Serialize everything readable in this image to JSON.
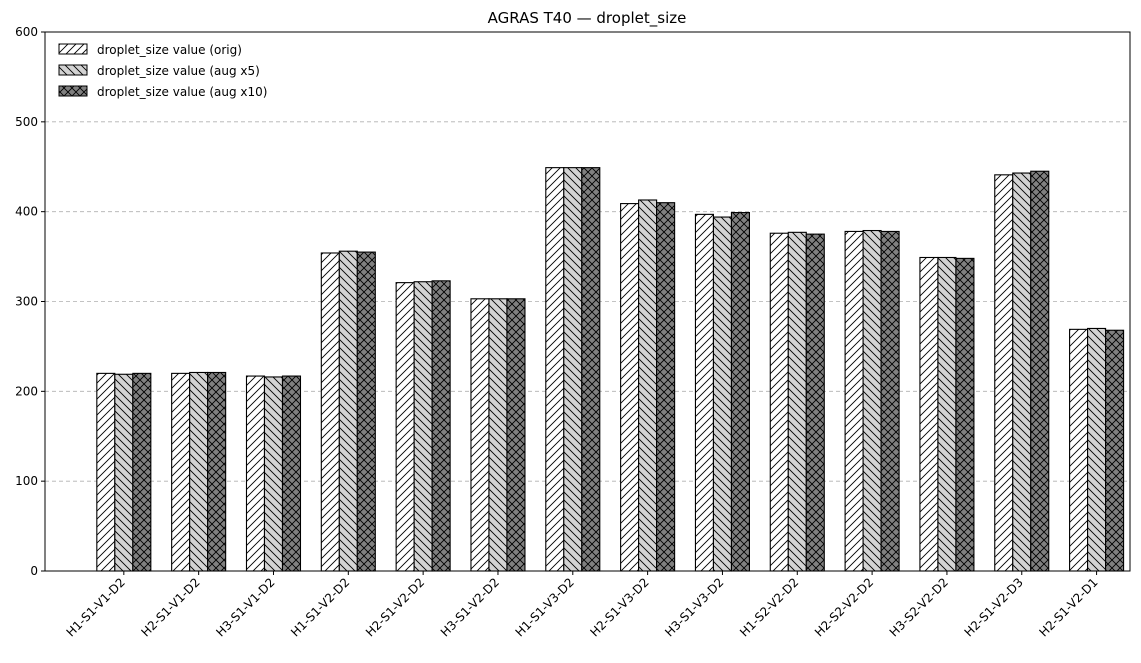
{
  "chart_data": {
    "type": "bar",
    "title": "AGRAS T40 — droplet_size",
    "xlabel": "",
    "ylabel": "",
    "ylim": [
      0,
      600
    ],
    "yticks": [
      0,
      100,
      200,
      300,
      400,
      500,
      600
    ],
    "grid": "y-dashed",
    "legend_position": "top-left",
    "categories": [
      "H1-S1-V1-D2",
      "H2-S1-V1-D2",
      "H3-S1-V1-D2",
      "H1-S1-V2-D2",
      "H2-S1-V2-D2",
      "H3-S1-V2-D2",
      "H1-S1-V3-D2",
      "H2-S1-V3-D2",
      "H3-S1-V3-D2",
      "H1-S2-V2-D2",
      "H2-S2-V2-D2",
      "H3-S2-V2-D2",
      "H2-S1-V2-D3",
      "H2-S1-V2-D1"
    ],
    "series": [
      {
        "name": "droplet_size value (orig)",
        "color": "#ffffff",
        "hatch": "forward-diagonal",
        "values": [
          220,
          220,
          217,
          354,
          321,
          303,
          449,
          409,
          397,
          376,
          378,
          349,
          441,
          269
        ]
      },
      {
        "name": "droplet_size value (aug x5)",
        "color": "#d3d3d3",
        "hatch": "back-diagonal",
        "values": [
          219,
          221,
          216,
          356,
          322,
          303,
          449,
          413,
          394,
          377,
          379,
          349,
          443,
          270
        ]
      },
      {
        "name": "droplet_size value (aug x10)",
        "color": "#808080",
        "hatch": "crosshatch",
        "values": [
          220,
          221,
          217,
          355,
          323,
          303,
          449,
          410,
          399,
          375,
          378,
          348,
          445,
          268
        ]
      }
    ]
  }
}
